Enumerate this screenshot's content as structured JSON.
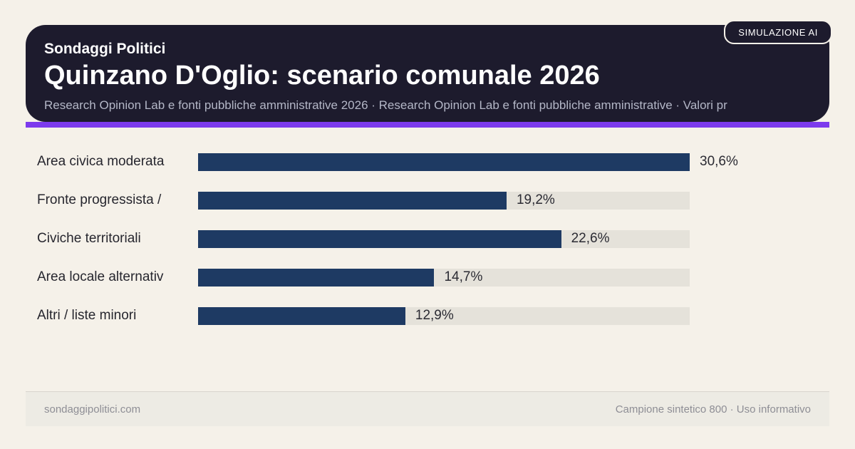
{
  "badge": {
    "label": "SIMULAZIONE AI"
  },
  "header": {
    "kicker": "Sondaggi Politici",
    "title": "Quinzano D'Oglio: scenario comunale 2026",
    "subtitle": "Research Opinion Lab e fonti pubbliche amministrative 2026 · Research Opinion Lab e fonti pubbliche amministrative · Valori pr"
  },
  "chart_data": {
    "type": "bar",
    "orientation": "horizontal",
    "categories": [
      "Area civica moderata",
      "Fronte progressista /",
      "Civiche territoriali",
      "Area locale alternativ",
      "Altri / liste minori"
    ],
    "values": [
      30.6,
      19.2,
      22.6,
      14.7,
      12.9
    ],
    "value_labels": [
      "30,6%",
      "19,2%",
      "22,6%",
      "14,7%",
      "12,9%"
    ],
    "xlim": [
      0,
      30.6
    ],
    "grid": false,
    "legend": false,
    "bar_color": "#1e3a63",
    "track_color": "#e5e2da"
  },
  "footer": {
    "left": "sondaggipolitici.com",
    "right": "Campione sintetico 800 · Uso informativo"
  },
  "colors": {
    "background": "#f5f1e9",
    "header_background": "#1d1b2d",
    "accent_purple": "#7c3aed",
    "bar_navy": "#1e3a63",
    "track_gray": "#e5e2da",
    "subtitle_gray": "#b4b7c7",
    "footer_gray": "#8e8e95"
  }
}
